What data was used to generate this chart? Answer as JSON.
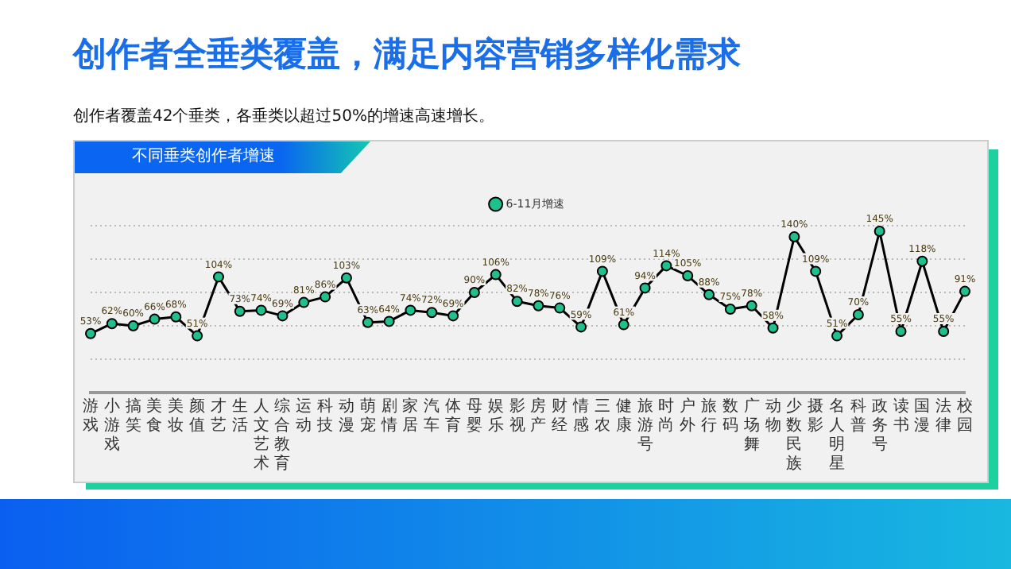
{
  "chart_data": {
    "type": "line",
    "title": "创作者全垂类覆盖，满足内容营销多样化需求",
    "subtitle": "创作者覆盖42个垂类，各垂类以超过50%的增速高速增长。",
    "annotations": [
      "不同垂类创作者增速"
    ],
    "categories": [
      "游戏",
      "小游戏",
      "搞笑",
      "美食",
      "美妆",
      "颜值",
      "才艺",
      "生活",
      "人文艺术",
      "综合教育",
      "运动",
      "科技",
      "动漫",
      "萌宠",
      "剧情",
      "家居",
      "汽车",
      "体育",
      "母婴",
      "娱乐",
      "影视",
      "房产",
      "财经",
      "情感",
      "三农",
      "健康",
      "旅游号",
      "时尚",
      "户外",
      "旅行",
      "数码",
      "广场舞",
      "动物",
      "少数民族",
      "摄影",
      "名人明星",
      "科普",
      "政务号",
      "读书",
      "国漫",
      "法律",
      "校园"
    ],
    "series": [
      {
        "name": "6-11月增速",
        "color": "#000000",
        "values": [
          53,
          62,
          60,
          66,
          68,
          51,
          104,
          73,
          74,
          69,
          81,
          86,
          103,
          63,
          64,
          74,
          72,
          69,
          90,
          106,
          82,
          78,
          76,
          59,
          109,
          61,
          94,
          114,
          105,
          88,
          75,
          78,
          58,
          140,
          109,
          51,
          70,
          145,
          55,
          118,
          55,
          91
        ],
        "value_labels": [
          "53%",
          "62%",
          "60%",
          "66%",
          "68%",
          "51%",
          "104%",
          "73%",
          "74%",
          "69%",
          "81%",
          "86%",
          "103%",
          "63%",
          "64%",
          "74%",
          "72%",
          "69%",
          "90%",
          "106%",
          "82%",
          "78%",
          "76%",
          "59%",
          "109%",
          "61%",
          "94%",
          "114%",
          "105%",
          "88%",
          "75%",
          "78%",
          "58%",
          "140%",
          "109%",
          "51%",
          "70%",
          "145%",
          "55%",
          "118%",
          "55%",
          "91%"
        ]
      }
    ],
    "marker": "circle",
    "ylim": [
      0,
      150
    ],
    "yticks": [
      {
        "value": 30,
        "label": null
      },
      {
        "value": 60,
        "label": null
      },
      {
        "value": 90,
        "label": null
      },
      {
        "value": 120,
        "label": null
      },
      {
        "value": 150,
        "label": null
      }
    ],
    "grid": "y",
    "legend": "top",
    "tick_labels": "x"
  }
}
